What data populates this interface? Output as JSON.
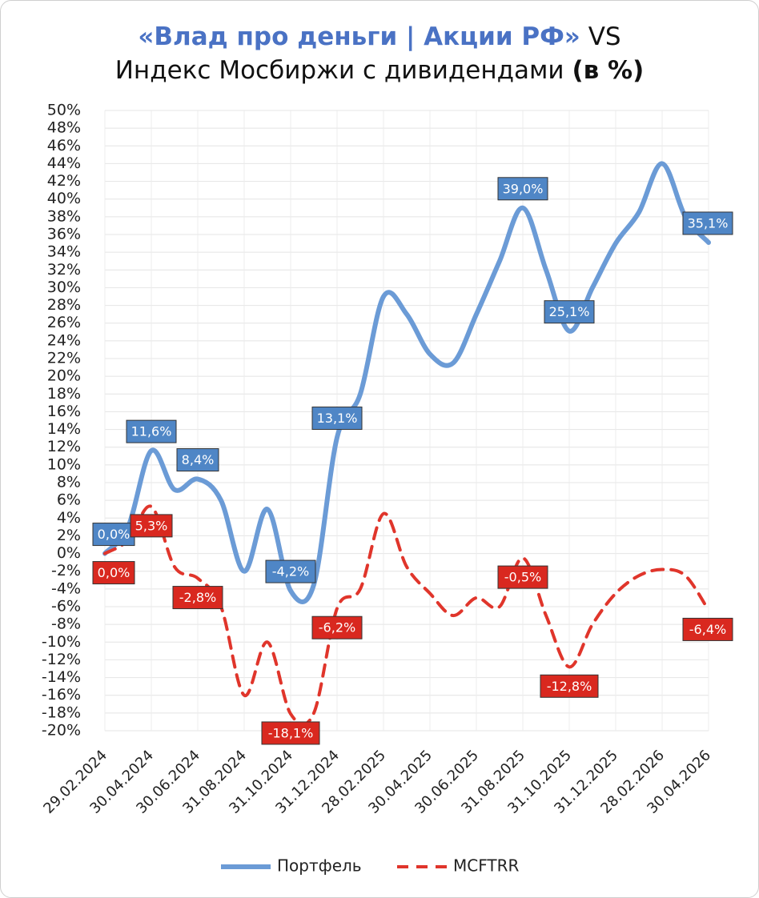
{
  "chart_data": {
    "type": "line",
    "title": {
      "line1": [
        {
          "text": "«Влад про деньги | Акции РФ»",
          "color": "#4a72c4",
          "bold": true
        },
        {
          "text": " VS",
          "color": "#111111",
          "bold": false
        }
      ],
      "line2": [
        {
          "text": "Индекс Мосбиржи с дивидендами ",
          "color": "#111111",
          "bold": false
        },
        {
          "text": "(в %)",
          "color": "#111111",
          "bold": true
        }
      ]
    },
    "categories": [
      "29.02.2024",
      null,
      "30.04.2024",
      null,
      "30.06.2024",
      null,
      "31.08.2024",
      null,
      "31.10.2024",
      null,
      "31.12.2024",
      null,
      "28.02.2025",
      null,
      "30.04.2025",
      null,
      "30.06.2025",
      null,
      "31.08.2025",
      null,
      "31.10.2025",
      null,
      "31.12.2025",
      null,
      "28.02.2026",
      null,
      "30.04.2026"
    ],
    "series": [
      {
        "name": "Портфель",
        "color": "#6b9bd6",
        "label_color": "#4f86c6",
        "dash": false,
        "values": [
          0,
          3,
          11.6,
          7.2,
          8.4,
          6,
          -2,
          5,
          -4.2,
          -3.5,
          13.1,
          18,
          29,
          27,
          22.5,
          21.5,
          27,
          33,
          39,
          32,
          25.1,
          30,
          35,
          38.5,
          44,
          38,
          35.1
        ],
        "value_labels": [
          "0,0%",
          null,
          "11,6%",
          null,
          "8,4%",
          null,
          null,
          null,
          "-4,2%",
          null,
          "13,1%",
          null,
          null,
          null,
          null,
          null,
          null,
          null,
          "39,0%",
          null,
          "25,1%",
          null,
          null,
          null,
          null,
          null,
          "35,1%"
        ]
      },
      {
        "name": "MCFTRR",
        "color": "#e0352b",
        "label_color": "#d9281f",
        "dash": true,
        "values": [
          0,
          1.5,
          5.3,
          -1.5,
          -2.8,
          -6,
          -16,
          -10,
          -18.1,
          -18,
          -6.2,
          -4,
          4.5,
          -1.5,
          -4.5,
          -7,
          -5,
          -6,
          -0.5,
          -7,
          -12.8,
          -8,
          -4.5,
          -2.5,
          -1.8,
          -2.5,
          -6.4
        ],
        "value_labels": [
          "0,0%",
          null,
          "5,3%",
          null,
          "-2,8%",
          null,
          null,
          null,
          "-18,1%",
          null,
          "-6,2%",
          null,
          null,
          null,
          null,
          null,
          null,
          null,
          "-0,5%",
          null,
          "-12,8%",
          null,
          null,
          null,
          null,
          null,
          "-6,4%"
        ]
      }
    ],
    "ylim": [
      -20,
      50
    ],
    "yticks": [
      {
        "value": -20,
        "label": "-20%"
      },
      {
        "value": -18,
        "label": "-18%"
      },
      {
        "value": -16,
        "label": "-16%"
      },
      {
        "value": -14,
        "label": "-14%"
      },
      {
        "value": -12,
        "label": "-12%"
      },
      {
        "value": -10,
        "label": "-10%"
      },
      {
        "value": -8,
        "label": "-8%"
      },
      {
        "value": -6,
        "label": "-6%"
      },
      {
        "value": -4,
        "label": "-4%"
      },
      {
        "value": -2,
        "label": "-2%"
      },
      {
        "value": 0,
        "label": "0%"
      },
      {
        "value": 2,
        "label": "2%"
      },
      {
        "value": 4,
        "label": "4%"
      },
      {
        "value": 6,
        "label": "6%"
      },
      {
        "value": 8,
        "label": "8%"
      },
      {
        "value": 10,
        "label": "10%"
      },
      {
        "value": 12,
        "label": "12%"
      },
      {
        "value": 14,
        "label": "14%"
      },
      {
        "value": 16,
        "label": "16%"
      },
      {
        "value": 18,
        "label": "18%"
      },
      {
        "value": 20,
        "label": "20%"
      },
      {
        "value": 22,
        "label": "22%"
      },
      {
        "value": 24,
        "label": "24%"
      },
      {
        "value": 26,
        "label": "26%"
      },
      {
        "value": 28,
        "label": "28%"
      },
      {
        "value": 30,
        "label": "30%"
      },
      {
        "value": 32,
        "label": "32%"
      },
      {
        "value": 34,
        "label": "34%"
      },
      {
        "value": 36,
        "label": "36%"
      },
      {
        "value": 38,
        "label": "38%"
      },
      {
        "value": 40,
        "label": "40%"
      },
      {
        "value": 42,
        "label": "42%"
      },
      {
        "value": 44,
        "label": "44%"
      },
      {
        "value": 46,
        "label": "46%"
      },
      {
        "value": 48,
        "label": "48%"
      },
      {
        "value": 50,
        "label": "50%"
      }
    ],
    "grid": true,
    "legend": "bottom"
  }
}
